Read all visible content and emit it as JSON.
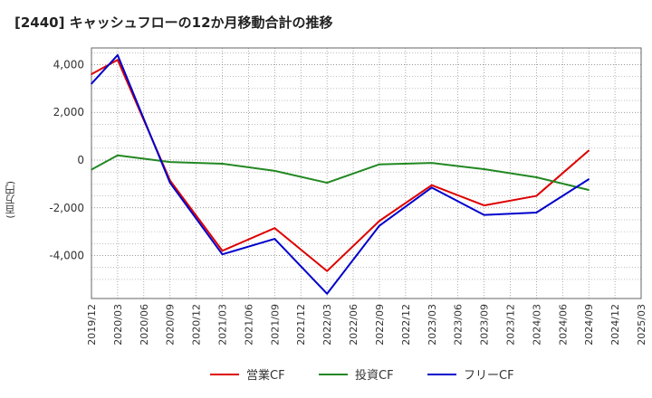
{
  "chart_data": {
    "type": "line",
    "title": "[2440]  キャッシュフローの12か月移動合計の推移",
    "ylabel": "(百万円)",
    "xlabel": "",
    "x": [
      "2019/12",
      "2020/03",
      "2020/06",
      "2020/09",
      "2020/12",
      "2021/03",
      "2021/06",
      "2021/09",
      "2021/12",
      "2022/03",
      "2022/06",
      "2022/09",
      "2022/12",
      "2023/03",
      "2023/06",
      "2023/09",
      "2023/12",
      "2024/03",
      "2024/06",
      "2024/09",
      "2024/12",
      "2025/03"
    ],
    "ylim": [
      -5800,
      4700
    ],
    "yticks": [
      4000,
      2000,
      0,
      -2000,
      -4000
    ],
    "ytick_labels": [
      "4,000",
      "2,000",
      "0",
      "-2,000",
      "-4,000"
    ],
    "grid": true,
    "legend_position": "bottom",
    "series": [
      {
        "name": "営業CF",
        "color": "#dd0000",
        "values": [
          3600,
          4200,
          null,
          -850,
          null,
          -3800,
          null,
          -2850,
          null,
          -4650,
          null,
          -2550,
          null,
          -1050,
          null,
          -1900,
          null,
          -1500,
          null,
          400,
          null,
          null
        ]
      },
      {
        "name": "投資CF",
        "color": "#228822",
        "values": [
          -400,
          200,
          null,
          -80,
          null,
          -150,
          null,
          -450,
          null,
          -950,
          null,
          -180,
          null,
          -120,
          null,
          -380,
          null,
          -720,
          null,
          -1250,
          null,
          null
        ]
      },
      {
        "name": "フリーCF",
        "color": "#0000cc",
        "values": [
          3200,
          4400,
          null,
          -950,
          null,
          -3950,
          null,
          -3300,
          null,
          -5600,
          null,
          -2750,
          null,
          -1150,
          null,
          -2300,
          null,
          -2200,
          null,
          -800,
          null,
          null
        ]
      }
    ]
  }
}
